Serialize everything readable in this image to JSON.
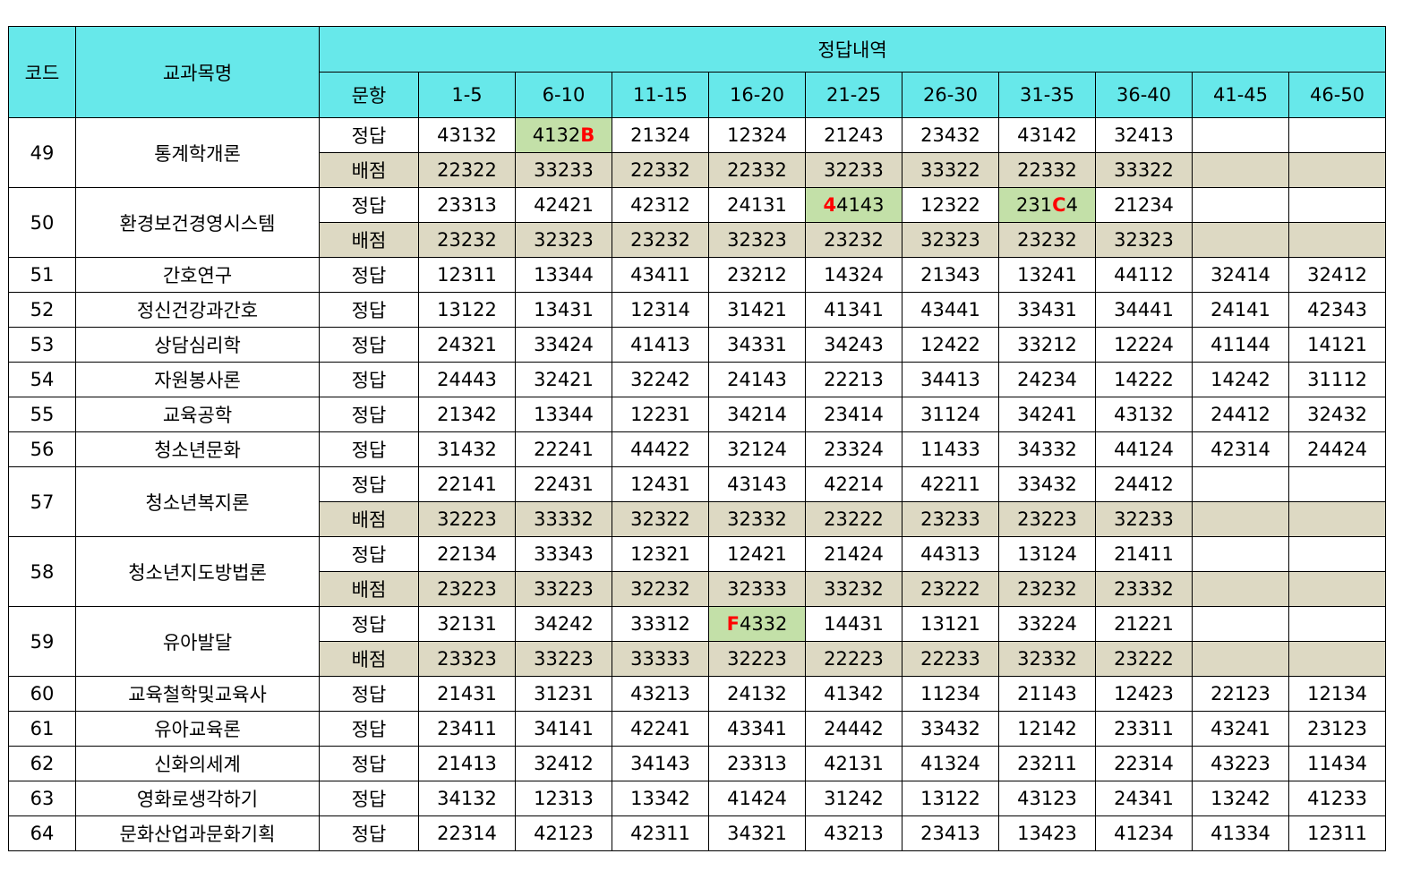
{
  "header": {
    "code": "코드",
    "subject": "교과목명",
    "answers_title": "정답내역",
    "item_label": "문항",
    "ranges": [
      "1-5",
      "6-10",
      "11-15",
      "16-20",
      "21-25",
      "26-30",
      "31-35",
      "36-40",
      "41-45",
      "46-50"
    ]
  },
  "row_labels": {
    "answer": "정답",
    "score": "배점"
  },
  "colors": {
    "header_bg": "#67e8ea",
    "score_bg": "#ddd9c3",
    "highlight_bg": "#c3e0a8",
    "changed_text": "#ff0000"
  },
  "rows": [
    {
      "code": "49",
      "name": "통계학개론",
      "answers": [
        "43132",
        [
          {
            "t": "4132"
          },
          {
            "t": "B",
            "red": true
          }
        ],
        "21324",
        "12324",
        "21243",
        "23432",
        "43142",
        "32413",
        "",
        ""
      ],
      "highlight": [
        1
      ],
      "scores": [
        "22322",
        "33233",
        "22332",
        "22332",
        "32233",
        "33322",
        "22332",
        "33322",
        "",
        ""
      ]
    },
    {
      "code": "50",
      "name": "환경보건경영시스템",
      "answers": [
        "23313",
        "42421",
        "42312",
        "24131",
        [
          {
            "t": "4",
            "red": true
          },
          {
            "t": "4143"
          }
        ],
        "12322",
        [
          {
            "t": "231"
          },
          {
            "t": "C",
            "red": true
          },
          {
            "t": "4"
          }
        ],
        "21234",
        "",
        ""
      ],
      "highlight": [
        4,
        6
      ],
      "scores": [
        "23232",
        "32323",
        "23232",
        "32323",
        "23232",
        "32323",
        "23232",
        "32323",
        "",
        ""
      ]
    },
    {
      "code": "51",
      "name": "간호연구",
      "answers": [
        "12311",
        "13344",
        "43411",
        "23212",
        "14324",
        "21343",
        "13241",
        "44112",
        "32414",
        "32412"
      ]
    },
    {
      "code": "52",
      "name": "정신건강과간호",
      "answers": [
        "13122",
        "13431",
        "12314",
        "31421",
        "41341",
        "43441",
        "33431",
        "34441",
        "24141",
        "42343"
      ]
    },
    {
      "code": "53",
      "name": "상담심리학",
      "answers": [
        "24321",
        "33424",
        "41413",
        "34331",
        "34243",
        "12422",
        "33212",
        "12224",
        "41144",
        "14121"
      ]
    },
    {
      "code": "54",
      "name": "자원봉사론",
      "answers": [
        "24443",
        "32421",
        "32242",
        "24143",
        "22213",
        "34413",
        "24234",
        "14222",
        "14242",
        "31112"
      ]
    },
    {
      "code": "55",
      "name": "교육공학",
      "answers": [
        "21342",
        "13344",
        "12231",
        "34214",
        "23414",
        "31124",
        "34241",
        "43132",
        "24412",
        "32432"
      ]
    },
    {
      "code": "56",
      "name": "청소년문화",
      "answers": [
        "31432",
        "22241",
        "44422",
        "32124",
        "23324",
        "11433",
        "34332",
        "44124",
        "42314",
        "24424"
      ]
    },
    {
      "code": "57",
      "name": "청소년복지론",
      "answers": [
        "22141",
        "22431",
        "12431",
        "43143",
        "42214",
        "42211",
        "33432",
        "24412",
        "",
        ""
      ],
      "scores": [
        "32223",
        "33332",
        "32322",
        "32332",
        "23222",
        "23233",
        "23223",
        "32233",
        "",
        ""
      ]
    },
    {
      "code": "58",
      "name": "청소년지도방법론",
      "answers": [
        "22134",
        "33343",
        "12321",
        "12421",
        "21424",
        "44313",
        "13124",
        "21411",
        "",
        ""
      ],
      "scores": [
        "23223",
        "33223",
        "32232",
        "32333",
        "33232",
        "23222",
        "23232",
        "23332",
        "",
        ""
      ]
    },
    {
      "code": "59",
      "name": "유아발달",
      "answers": [
        "32131",
        "34242",
        "33312",
        [
          {
            "t": "F",
            "red": true
          },
          {
            "t": "4332"
          }
        ],
        "14431",
        "13121",
        "33224",
        "21221",
        "",
        ""
      ],
      "highlight": [
        3
      ],
      "scores": [
        "23323",
        "33223",
        "33333",
        "32223",
        "22223",
        "22233",
        "32332",
        "23222",
        "",
        ""
      ]
    },
    {
      "code": "60",
      "name": "교육철학및교육사",
      "answers": [
        "21431",
        "31231",
        "43213",
        "24132",
        "41342",
        "11234",
        "21143",
        "12423",
        "22123",
        "12134"
      ]
    },
    {
      "code": "61",
      "name": "유아교육론",
      "answers": [
        "23411",
        "34141",
        "42241",
        "43341",
        "24442",
        "33432",
        "12142",
        "23311",
        "43241",
        "23123"
      ]
    },
    {
      "code": "62",
      "name": "신화의세계",
      "answers": [
        "21413",
        "32412",
        "34143",
        "23313",
        "42131",
        "41324",
        "23211",
        "22314",
        "43223",
        "11434"
      ]
    },
    {
      "code": "63",
      "name": "영화로생각하기",
      "answers": [
        "34132",
        "12313",
        "13342",
        "41424",
        "31242",
        "13122",
        "43123",
        "24341",
        "13242",
        "41233"
      ]
    },
    {
      "code": "64",
      "name": "문화산업과문화기획",
      "answers": [
        "22314",
        "42123",
        "42311",
        "34321",
        "43213",
        "23413",
        "13423",
        "41234",
        "41334",
        "12311"
      ]
    }
  ]
}
